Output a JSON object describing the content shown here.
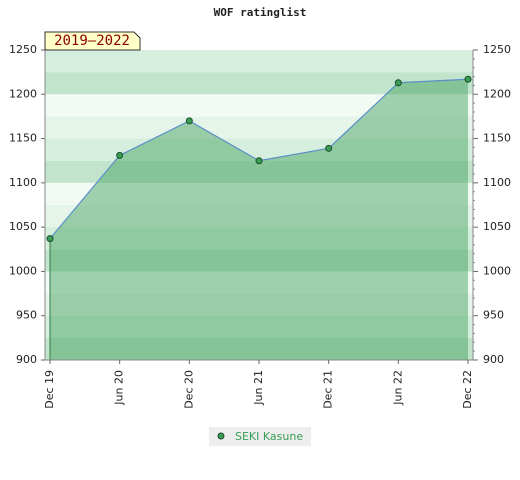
{
  "chart_data": {
    "type": "area-line",
    "title": "WOF ratinglist",
    "annotation": "2019–2022",
    "categories": [
      "Dec 19",
      "Jun 20",
      "Dec 20",
      "Jun 21",
      "Dec 21",
      "Jun 22",
      "Dec 22"
    ],
    "series": [
      {
        "name": "SEKI Kasune",
        "color": "#3a9d56",
        "line_color": "#5a8fc8",
        "values": [
          1037,
          1131,
          1170,
          1125,
          1139,
          1213,
          1217
        ]
      }
    ],
    "ylim": [
      900,
      1250
    ],
    "yticks": [
      900,
      950,
      1000,
      1050,
      1100,
      1150,
      1200,
      1250
    ],
    "y2lim": [
      900,
      1250
    ],
    "y2ticks": [
      900,
      950,
      1000,
      1050,
      1100,
      1150,
      1200,
      1250
    ],
    "grid": true,
    "legend": "bottom"
  }
}
